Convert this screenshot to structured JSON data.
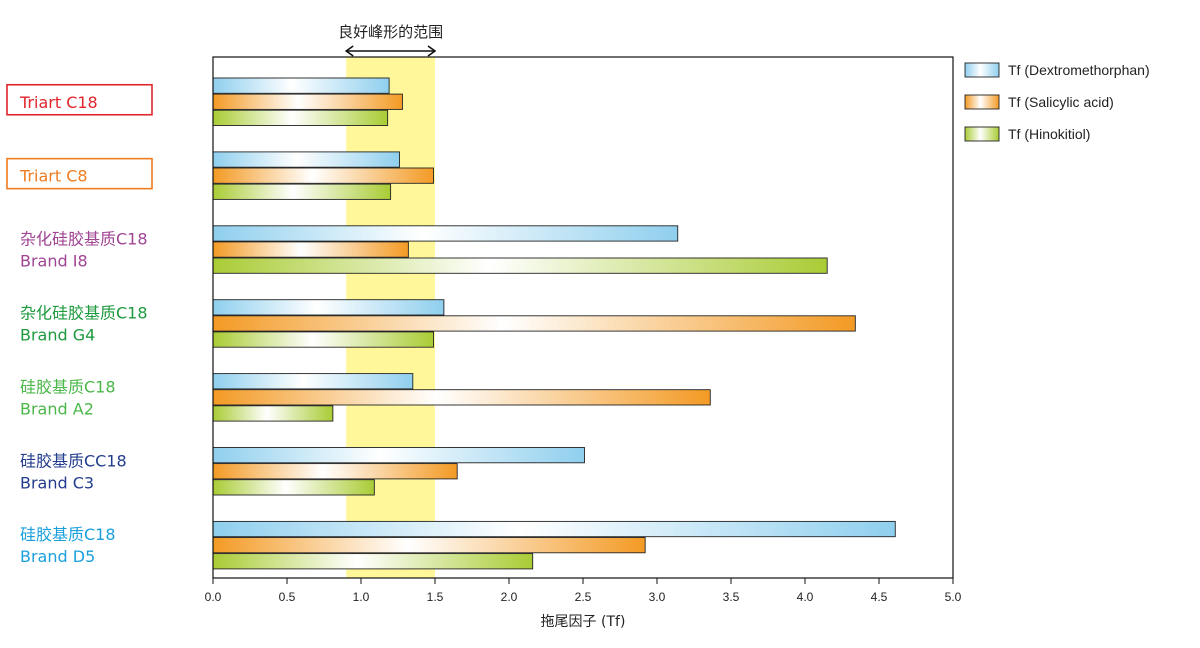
{
  "chart_data": {
    "type": "bar",
    "orientation": "horizontal",
    "title": "",
    "xlabel": "拖尾因子 (Tf)",
    "ylabel": "",
    "xlim": [
      0,
      5
    ],
    "xticks": [
      "0.0",
      "0.5",
      "1.0",
      "1.5",
      "2.0",
      "2.5",
      "3.0",
      "3.5",
      "4.0",
      "4.5",
      "5.0"
    ],
    "grid": false,
    "legend_position": "right",
    "categories": [
      {
        "lines": [
          "Triart C18"
        ],
        "color": "#e0262b",
        "boxed": true
      },
      {
        "lines": [
          "Triart C8"
        ],
        "color": "#f07c20",
        "boxed": true
      },
      {
        "lines": [
          "杂化硅胶基质C18",
          "Brand I8"
        ],
        "color": "#a04494",
        "boxed": false
      },
      {
        "lines": [
          "杂化硅胶基质C18",
          "Brand G4"
        ],
        "color": "#1d9a3e",
        "boxed": false
      },
      {
        "lines": [
          "硅胶基质C18",
          "Brand A2"
        ],
        "color": "#4bb748",
        "boxed": false
      },
      {
        "lines": [
          "硅胶基质CC18",
          "Brand C3"
        ],
        "color": "#233d8e",
        "boxed": false
      },
      {
        "lines": [
          "硅胶基质C18",
          "Brand D5"
        ],
        "color": "#1ba0dc",
        "boxed": false
      }
    ],
    "series": [
      {
        "name": "Tf (Dextromethorphan)",
        "color": "#8fcfee",
        "values": [
          1.19,
          1.26,
          3.14,
          1.56,
          1.35,
          2.51,
          4.61
        ]
      },
      {
        "name": "Tf (Salicylic acid)",
        "color": "#f39a24",
        "values": [
          1.28,
          1.49,
          1.32,
          4.34,
          3.36,
          1.65,
          2.92
        ]
      },
      {
        "name": "Tf (Hinokitiol)",
        "color": "#a9cc35",
        "values": [
          1.18,
          1.2,
          4.15,
          1.49,
          0.81,
          1.09,
          2.16
        ]
      }
    ],
    "annotations": [
      {
        "text": "良好峰形的范围",
        "x_range": [
          0.9,
          1.5
        ],
        "color": "#fff799"
      }
    ]
  }
}
